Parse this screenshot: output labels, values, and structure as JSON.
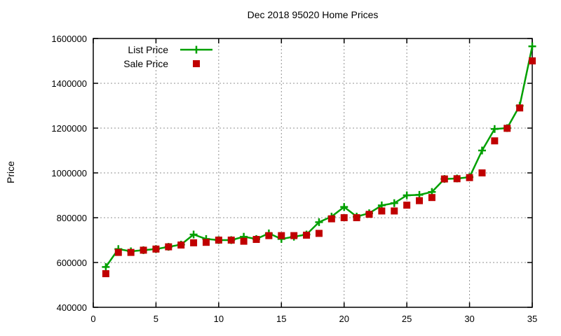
{
  "window": {
    "background": "#ffffff"
  },
  "chart_data": {
    "type": "line",
    "title": "Dec 2018 95020 Home Prices",
    "xlabel": "",
    "ylabel": "Price",
    "xlim": [
      0,
      35
    ],
    "ylim": [
      400000,
      1600000
    ],
    "grid": true,
    "legend_position": "top-left-inside",
    "xticks": [
      0,
      5,
      10,
      15,
      20,
      25,
      30,
      35
    ],
    "xtick_labels": [
      "0",
      "5",
      "10",
      "15",
      "20",
      "25",
      "30",
      "35"
    ],
    "yticks": [
      400000,
      600000,
      800000,
      1000000,
      1200000,
      1400000,
      1600000
    ],
    "ytick_labels": [
      "400000",
      "600000",
      "800000",
      "1000000",
      "1200000",
      "1400000",
      "1600000"
    ],
    "x": [
      1,
      2,
      3,
      4,
      5,
      6,
      7,
      8,
      9,
      10,
      11,
      12,
      13,
      14,
      15,
      16,
      17,
      18,
      19,
      20,
      21,
      22,
      23,
      24,
      25,
      26,
      27,
      28,
      29,
      30,
      31,
      32,
      33,
      34,
      35
    ],
    "series": [
      {
        "name": "List Price",
        "style": "linespoints",
        "marker": "plus",
        "color": "#00a000",
        "values": [
          580000,
          660000,
          650000,
          655000,
          660000,
          670000,
          680000,
          725000,
          705000,
          700000,
          700000,
          715000,
          705000,
          730000,
          705000,
          715000,
          725000,
          780000,
          805000,
          848000,
          805000,
          820000,
          855000,
          865000,
          900000,
          902000,
          915000,
          973000,
          975000,
          981000,
          1100000,
          1196000,
          1200000,
          1300000,
          1565000
        ]
      },
      {
        "name": "Sale Price",
        "style": "points",
        "marker": "square",
        "color": "#c00000",
        "values": [
          550000,
          645000,
          645000,
          655000,
          660000,
          670000,
          678000,
          688000,
          690000,
          700000,
          700000,
          695000,
          703000,
          720000,
          720000,
          720000,
          722000,
          730000,
          795000,
          800000,
          800000,
          815000,
          830000,
          830000,
          856000,
          876000,
          890000,
          973000,
          974000,
          979000,
          1000000,
          1143000,
          1199000,
          1290000,
          1500000
        ]
      }
    ],
    "grid_color": "#909090",
    "axis_color": "#000000"
  }
}
